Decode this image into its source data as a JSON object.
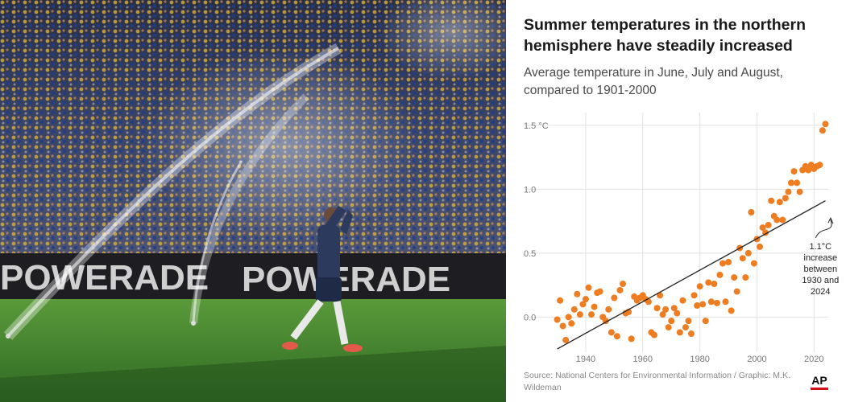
{
  "photo": {
    "description_icon": "stadium-sprinkler-photo",
    "banner_text": "POWERADE"
  },
  "colors": {
    "dots": "#ee7d22",
    "trend": "#222222",
    "grid": "#e2e2e2",
    "ap_red": "#d0101a"
  },
  "credits": {
    "source": "Source: National Centers for Environmental Information / Graphic: M.K. Wildeman",
    "logo": "AP"
  },
  "chart_data": {
    "type": "scatter",
    "title": "Summer temperatures in the northern hemisphere have steadily increased",
    "subtitle": "Average temperature in June, July and August, compared to 1901-2000",
    "xlabel": "",
    "ylabel": "",
    "xlim": [
      1929,
      2025
    ],
    "ylim": [
      -0.35,
      1.6
    ],
    "x_ticks": [
      1940,
      1960,
      1980,
      2000,
      2020
    ],
    "x_tick_labels": [
      "1940",
      "1960",
      "1980",
      "2000",
      "2020"
    ],
    "y_ticks": [
      0.0,
      0.5,
      1.0,
      1.5
    ],
    "y_tick_labels": [
      "0.0",
      "0.5",
      "1.0",
      "1.5 °C"
    ],
    "grid": true,
    "trend_line": {
      "x": [
        1930,
        2024
      ],
      "y": [
        -0.25,
        0.91
      ]
    },
    "annotation": {
      "lines": [
        "1.1°C",
        "increase",
        "between",
        "1930 and",
        "2024"
      ],
      "arrow_to": [
        2023,
        0.8
      ]
    },
    "points": {
      "x": [
        1930,
        1931,
        1932,
        1933,
        1934,
        1935,
        1936,
        1937,
        1938,
        1939,
        1940,
        1941,
        1942,
        1943,
        1944,
        1945,
        1946,
        1947,
        1948,
        1949,
        1950,
        1951,
        1952,
        1953,
        1954,
        1955,
        1956,
        1957,
        1958,
        1959,
        1960,
        1961,
        1962,
        1963,
        1964,
        1965,
        1966,
        1967,
        1968,
        1969,
        1970,
        1971,
        1972,
        1973,
        1974,
        1975,
        1976,
        1977,
        1978,
        1979,
        1980,
        1981,
        1982,
        1983,
        1984,
        1985,
        1986,
        1987,
        1988,
        1989,
        1990,
        1991,
        1992,
        1993,
        1994,
        1995,
        1996,
        1997,
        1998,
        1999,
        2000,
        2001,
        2002,
        2003,
        2004,
        2005,
        2006,
        2007,
        2008,
        2009,
        2010,
        2011,
        2012,
        2013,
        2014,
        2015,
        2016,
        2017,
        2018,
        2019,
        2020,
        2021,
        2022,
        2023,
        2024
      ],
      "y": [
        -0.02,
        0.13,
        -0.07,
        -0.18,
        0.0,
        -0.05,
        0.06,
        0.18,
        0.02,
        0.1,
        0.14,
        0.23,
        0.02,
        0.08,
        0.19,
        0.2,
        0.0,
        -0.03,
        0.06,
        -0.12,
        0.15,
        -0.15,
        0.21,
        0.26,
        0.03,
        0.04,
        -0.17,
        0.16,
        0.13,
        0.15,
        0.17,
        0.14,
        0.12,
        -0.12,
        -0.14,
        0.07,
        0.17,
        0.02,
        0.06,
        -0.08,
        -0.03,
        0.07,
        0.03,
        -0.12,
        0.13,
        -0.08,
        -0.03,
        -0.13,
        0.17,
        0.09,
        0.24,
        0.1,
        -0.03,
        0.27,
        0.12,
        0.26,
        0.11,
        0.33,
        0.42,
        0.12,
        0.43,
        0.05,
        0.31,
        0.2,
        0.54,
        0.46,
        0.31,
        0.5,
        0.82,
        0.42,
        0.61,
        0.55,
        0.7,
        0.66,
        0.72,
        0.91,
        0.79,
        0.76,
        0.9,
        0.76,
        0.93,
        0.98,
        1.05,
        1.14,
        1.05,
        0.98,
        1.15,
        1.18,
        1.15,
        1.19,
        1.16,
        1.18,
        1.19,
        1.46,
        1.51
      ]
    }
  }
}
